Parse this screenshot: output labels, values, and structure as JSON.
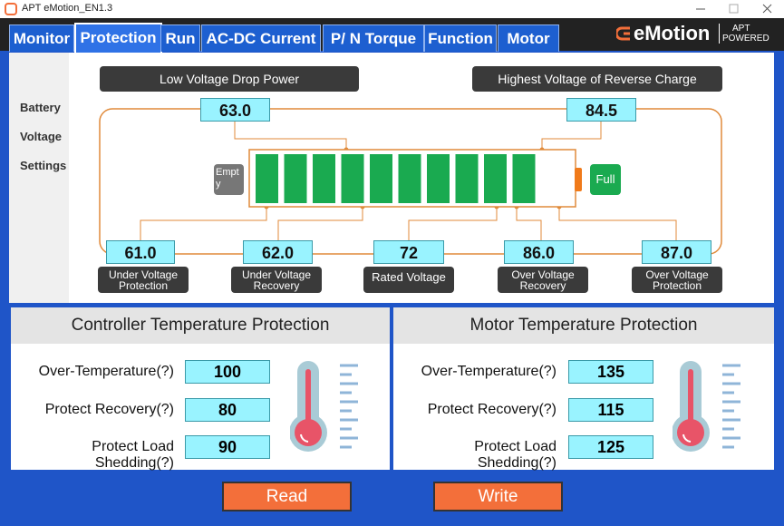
{
  "window": {
    "title": "APT eMotion_EN1.3"
  },
  "tabs": [
    "Monitor",
    "Protection",
    "Run",
    "AC-DC Current",
    "P/ N Torque",
    "Function",
    "Motor"
  ],
  "logo": {
    "name": "eMotion",
    "tagline": [
      "APT",
      "POWERED"
    ]
  },
  "battery": {
    "side_label": [
      "Battery",
      "Voltage",
      "Settings"
    ],
    "top": [
      {
        "label": "Low Voltage Drop Power",
        "value": "63.0"
      },
      {
        "label": "Highest Voltage of Reverse Charge",
        "value": "84.5"
      }
    ],
    "empty": "Empty",
    "full": "Full",
    "bottom": [
      {
        "value": "61.0",
        "label": "Under Voltage Protection"
      },
      {
        "value": "62.0",
        "label": "Under Voltage Recovery"
      },
      {
        "value": "72",
        "label": "Rated Voltage"
      },
      {
        "value": "86.0",
        "label": "Over Voltage Recovery"
      },
      {
        "value": "87.0",
        "label": "Over Voltage Protection"
      }
    ]
  },
  "controller": {
    "title": "Controller Temperature Protection",
    "rows": [
      {
        "label": "Over-Temperature(?)",
        "value": "100"
      },
      {
        "label": "Protect Recovery(?)",
        "value": "80"
      },
      {
        "label": "Protect Load Shedding(?)",
        "value": "90"
      }
    ]
  },
  "motor": {
    "title": "Motor Temperature Protection",
    "rows": [
      {
        "label": "Over-Temperature(?)",
        "value": "135"
      },
      {
        "label": "Protect Recovery(?)",
        "value": "115"
      },
      {
        "label": "Protect Load Shedding(?)",
        "value": "125"
      }
    ]
  },
  "buttons": [
    "Read",
    "Write"
  ]
}
